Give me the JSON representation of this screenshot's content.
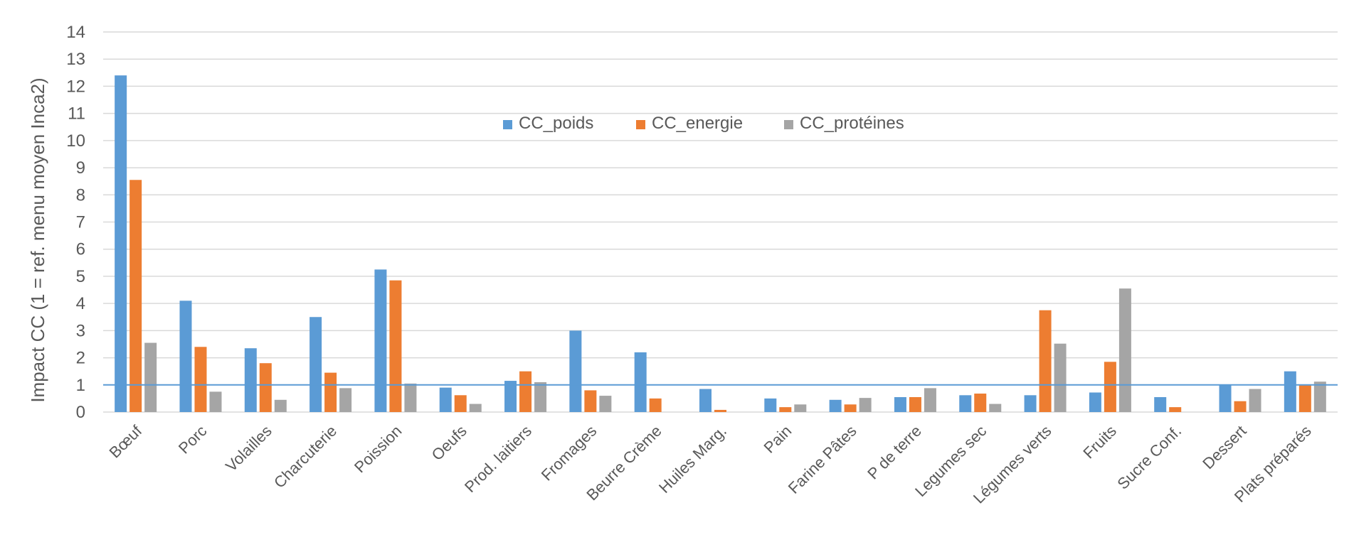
{
  "chart_data": {
    "type": "bar",
    "title": "",
    "xlabel": "",
    "ylabel": "Impact  CC (1 = ref. menu moyen Inca2)",
    "ylim": [
      0,
      14
    ],
    "yticks": [
      0,
      1,
      2,
      3,
      4,
      5,
      6,
      7,
      8,
      9,
      10,
      11,
      12,
      13,
      14
    ],
    "grid": true,
    "legend_position": "top-center",
    "reference_line": 1,
    "categories": [
      "Bœuf",
      "Porc",
      "Volailles",
      "Charcuterie",
      "Poission",
      "Oeufs",
      "Prod. laitiers",
      "Fromages",
      "Beurre Crème",
      "Huiles Marg.",
      "Pain",
      "Farine Pâtes",
      "P de terre",
      "Legumes sec",
      "Légumes verts",
      "Fruits",
      "Sucre Conf.",
      "Dessert",
      "Plats préparés"
    ],
    "series": [
      {
        "name": "CC_poids",
        "color": "#5b9bd5",
        "values": [
          12.4,
          4.1,
          2.35,
          3.5,
          5.25,
          0.9,
          1.15,
          3.0,
          2.2,
          0.85,
          0.5,
          0.45,
          0.55,
          0.62,
          0.62,
          0.72,
          0.55,
          1.0,
          1.5
        ]
      },
      {
        "name": "CC_energie",
        "color": "#ed7d31",
        "values": [
          8.55,
          2.4,
          1.8,
          1.45,
          4.85,
          0.62,
          1.5,
          0.8,
          0.5,
          0.08,
          0.18,
          0.28,
          0.55,
          0.68,
          3.75,
          1.85,
          0.18,
          0.4,
          0.98
        ]
      },
      {
        "name": "CC_protéines",
        "color": "#a5a5a5",
        "values": [
          2.55,
          0.75,
          0.45,
          0.88,
          1.05,
          0.3,
          1.1,
          0.6,
          0,
          0,
          0.28,
          0.52,
          0.88,
          0.3,
          2.52,
          4.55,
          0,
          0.85,
          1.12
        ]
      }
    ]
  }
}
